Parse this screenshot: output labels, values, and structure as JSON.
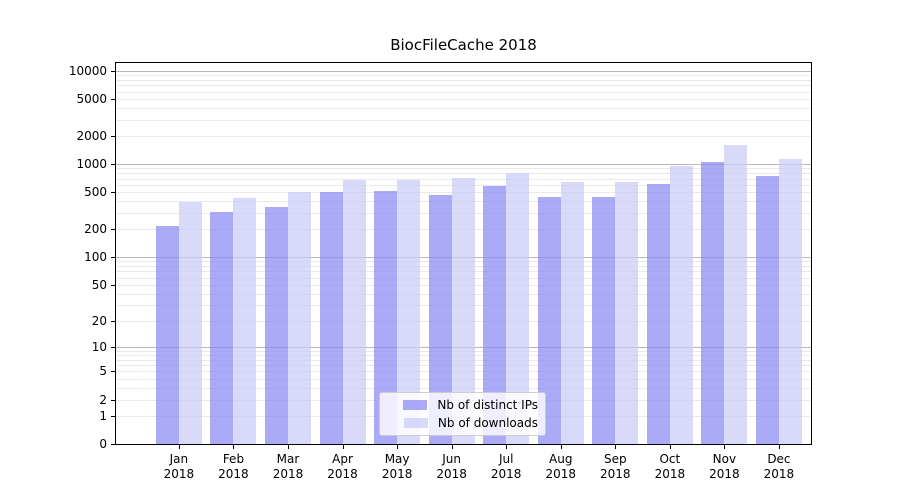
{
  "chart_data": {
    "type": "bar",
    "title": "BiocFileCache 2018",
    "categories": [
      "Jan",
      "Feb",
      "Mar",
      "Apr",
      "May",
      "Jun",
      "Jul",
      "Aug",
      "Sep",
      "Oct",
      "Nov",
      "Dec"
    ],
    "category_year": "2018",
    "series": [
      {
        "name": "Nb of distinct IPs",
        "color": "rgba(134,134,244,0.7)",
        "values": [
          215,
          310,
          345,
          500,
          510,
          465,
          585,
          450,
          450,
          615,
          1050,
          740
        ]
      },
      {
        "name": "Nb of downloads",
        "color": "rgba(201,201,246,0.7)",
        "values": [
          390,
          430,
          500,
          685,
          685,
          705,
          800,
          640,
          640,
          960,
          1590,
          1125
        ]
      }
    ],
    "yscale": "log1p",
    "yticks": [
      0,
      1,
      2,
      5,
      10,
      20,
      50,
      100,
      200,
      500,
      1000,
      2000,
      5000,
      10000
    ],
    "ylim": [
      0,
      10000
    ],
    "grid": {
      "axis": "y",
      "major_color": "#b8b8b8",
      "minor_color": "#e9e9e9"
    },
    "legend": {
      "position": "lower center"
    },
    "axis_color": "#000000",
    "text_color": "#000000",
    "background": "#ffffff"
  }
}
